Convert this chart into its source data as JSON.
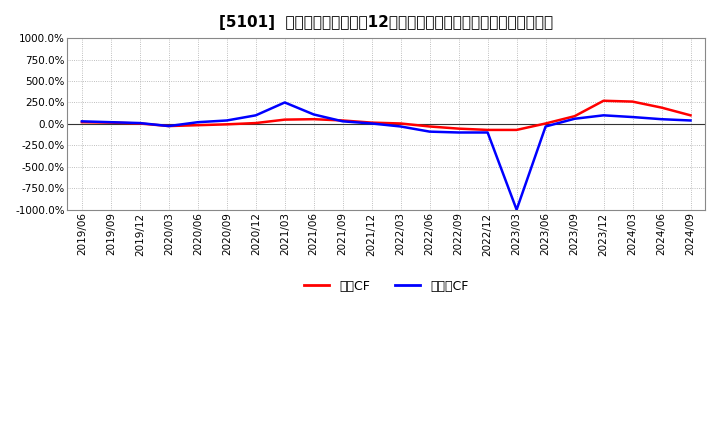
{
  "title": "[5101]  キャッシュフローの12か月移動合計の対前年同期増減率の推移",
  "ylim": [
    -1000,
    1000
  ],
  "yticks": [
    -1000,
    -750,
    -500,
    -250,
    0,
    250,
    500,
    750,
    1000
  ],
  "operating_cf_values": [
    20,
    15,
    5,
    -25,
    -15,
    -5,
    10,
    50,
    55,
    40,
    15,
    5,
    -30,
    -55,
    -70,
    -70,
    5,
    90,
    270,
    260,
    190,
    100
  ],
  "free_cf_values": [
    30,
    20,
    10,
    -25,
    20,
    40,
    100,
    250,
    110,
    30,
    5,
    -30,
    -90,
    -100,
    -100,
    -1000,
    -30,
    60,
    100,
    80,
    55,
    40
  ],
  "xtick_labels": [
    "2019/06",
    "2019/09",
    "2019/12",
    "2020/03",
    "2020/06",
    "2020/09",
    "2020/12",
    "2021/03",
    "2021/06",
    "2021/09",
    "2021/12",
    "2022/03",
    "2022/06",
    "2022/09",
    "2022/12",
    "2023/03",
    "2023/06",
    "2023/09",
    "2023/12",
    "2024/03",
    "2024/06",
    "2024/09"
  ],
  "op_color": "#ff0000",
  "free_color": "#0000ff",
  "linewidth": 1.8,
  "grid_color": "#aaaaaa",
  "bg_color": "#ffffff",
  "legend_labels": [
    "営業CF",
    "フリーCF"
  ],
  "title_fontsize": 11,
  "tick_fontsize": 7.5
}
